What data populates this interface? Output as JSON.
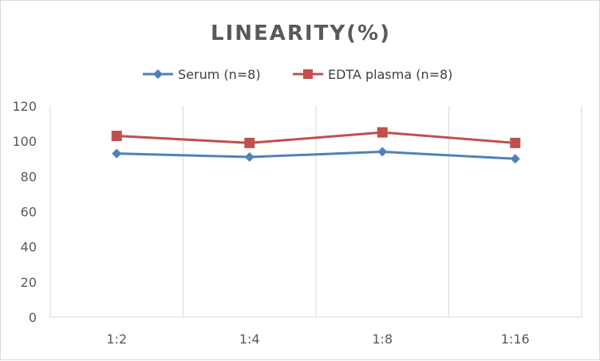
{
  "chart_data": {
    "type": "line",
    "title": "LINEARITY(%)",
    "categories": [
      "1:2",
      "1:4",
      "1:8",
      "1:16"
    ],
    "series": [
      {
        "name": "Serum (n=8)",
        "values": [
          93,
          91,
          94,
          90
        ],
        "color": "#4f81bd",
        "marker": "diamond"
      },
      {
        "name": "EDTA plasma (n=8)",
        "values": [
          103,
          99,
          105,
          99
        ],
        "color": "#c0504d",
        "marker": "square"
      }
    ],
    "ylim": [
      0,
      120
    ],
    "yticks": [
      "0",
      "20",
      "40",
      "60",
      "80",
      "100",
      "120"
    ],
    "grid": "vertical category separators",
    "legend": "top"
  }
}
